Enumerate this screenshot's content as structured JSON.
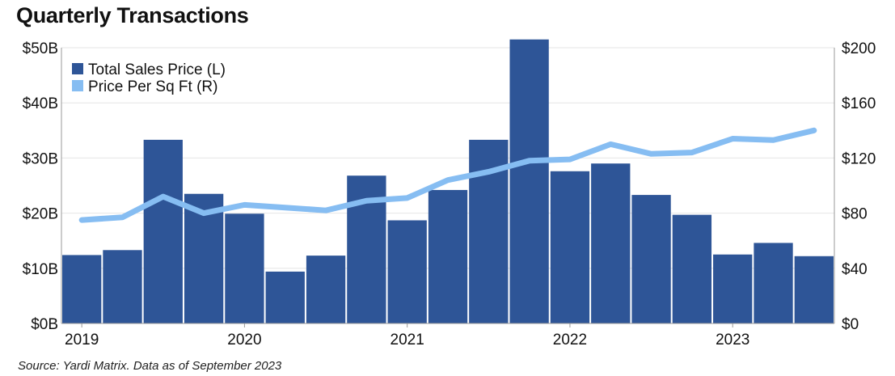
{
  "title": "Quarterly Transactions",
  "source": "Source: Yardi Matrix. Data as of September 2023",
  "colors": {
    "bar": "#2e5597",
    "line": "#86bdf2",
    "grid": "#e6e6e6",
    "axis": "#999999"
  },
  "chart_data": {
    "type": "bar",
    "title": "Quarterly Transactions",
    "categories": [
      "2019 Q1",
      "2019 Q2",
      "2019 Q3",
      "2019 Q4",
      "2020 Q1",
      "2020 Q2",
      "2020 Q3",
      "2020 Q4",
      "2021 Q1",
      "2021 Q2",
      "2021 Q3",
      "2021 Q4",
      "2022 Q1",
      "2022 Q2",
      "2022 Q3",
      "2022 Q4",
      "2023 Q1",
      "2023 Q2",
      "2023 Q3"
    ],
    "x_tick_labels": [
      "2019",
      "2020",
      "2021",
      "2022",
      "2023"
    ],
    "series": [
      {
        "name": "Total Sales Price (L)",
        "type": "bar",
        "axis": "left",
        "values": [
          12.4,
          13.3,
          33.3,
          23.5,
          19.9,
          9.4,
          12.3,
          26.8,
          18.7,
          24.2,
          33.3,
          51.5,
          27.6,
          29.0,
          23.3,
          19.7,
          12.5,
          14.6,
          12.2
        ]
      },
      {
        "name": "Price Per Sq Ft (R)",
        "type": "line",
        "axis": "right",
        "values": [
          75,
          77,
          92,
          80,
          86,
          84,
          82,
          89,
          91,
          104,
          110,
          118,
          119,
          130,
          123,
          124,
          134,
          133,
          140
        ]
      }
    ],
    "y_left": {
      "ylim": [
        0,
        50
      ],
      "ticks": [
        "$0B",
        "$10B",
        "$20B",
        "$30B",
        "$40B",
        "$50B"
      ]
    },
    "y_right": {
      "ylim": [
        0,
        200
      ],
      "ticks": [
        "$0",
        "$40",
        "$80",
        "$120",
        "$160",
        "$200"
      ]
    },
    "legend": {
      "position": "top-left"
    },
    "grid": true
  }
}
